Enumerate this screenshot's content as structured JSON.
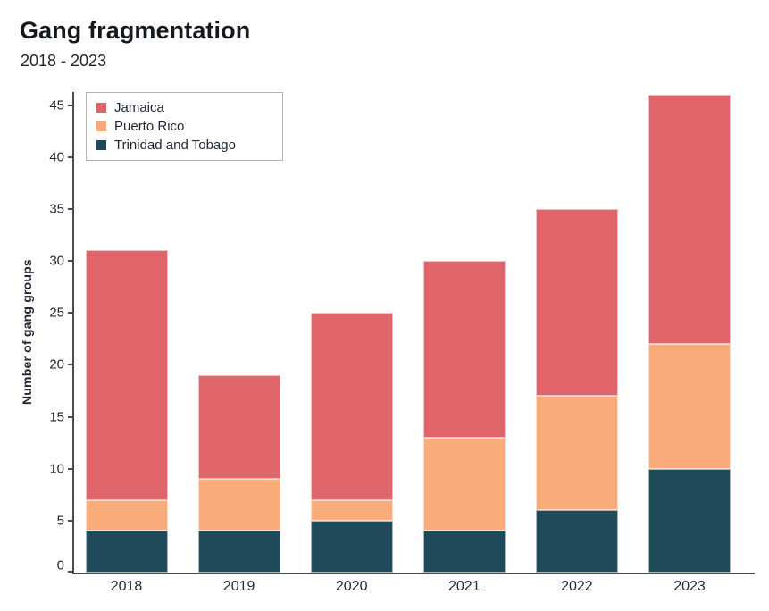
{
  "header": {
    "title": "Gang fragmentation",
    "subtitle": "2018 - 2023"
  },
  "chart_data": {
    "type": "bar",
    "stacked": true,
    "title": "Gang fragmentation",
    "subtitle": "2018 - 2023",
    "categories": [
      "2018",
      "2019",
      "2020",
      "2021",
      "2022",
      "2023"
    ],
    "series": [
      {
        "name": "Jamaica",
        "color": "#e0656a",
        "values": [
          24,
          10,
          18,
          17,
          18,
          24
        ]
      },
      {
        "name": "Puerto Rico",
        "color": "#f9ab7a",
        "values": [
          3,
          5,
          2,
          9,
          11,
          12
        ]
      },
      {
        "name": "Trinidad and Tobago",
        "color": "#1f4a59",
        "values": [
          4,
          4,
          5,
          4,
          6,
          10
        ]
      }
    ],
    "stack_order_bottom_to_top": [
      "Trinidad and Tobago",
      "Puerto Rico",
      "Jamaica"
    ],
    "totals": [
      31,
      19,
      25,
      30,
      35,
      46
    ],
    "xlabel": "",
    "ylabel": "Number of gang groups",
    "yticks": [
      0,
      5,
      10,
      15,
      20,
      25,
      30,
      35,
      40,
      45
    ],
    "ylim": [
      0,
      46.25
    ],
    "grid": false,
    "legend_position": "top-left"
  },
  "colors": {
    "axis": "#454a4f",
    "text": "#1e2733",
    "title_text": "#15181d",
    "legend_border": "#b3b3b3",
    "segment_separator": "#ffffff",
    "background": "#ffffff"
  }
}
